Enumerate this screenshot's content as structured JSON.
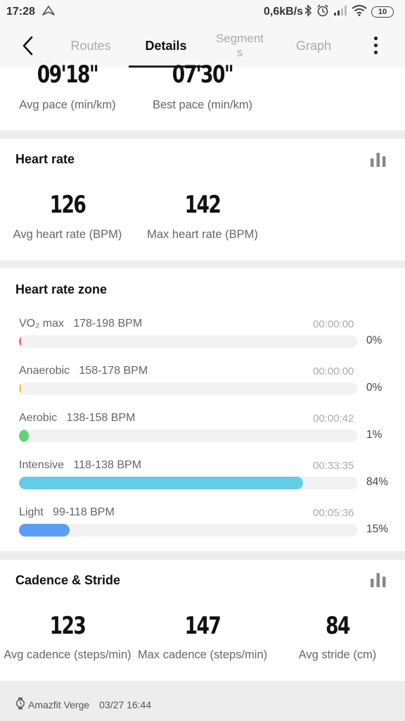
{
  "status_bar": {
    "time": "17:28",
    "network_speed": "0,6kB/s",
    "battery_level": "10",
    "icons": [
      "navigation-icon",
      "bluetooth-icon",
      "alarm-icon",
      "signal-icon",
      "wifi-icon",
      "battery-icon"
    ]
  },
  "appbar": {
    "tabs": [
      {
        "label": "Routes",
        "active": false
      },
      {
        "label": "Details",
        "active": true
      },
      {
        "label": "Segment\ns",
        "active": false
      },
      {
        "label": "Graph",
        "active": false
      }
    ]
  },
  "pace": {
    "avg_value": "09'18\"",
    "avg_label": "Avg pace (min/km)",
    "best_value": "07'30\"",
    "best_label": "Best pace (min/km)"
  },
  "heart_rate": {
    "title": "Heart rate",
    "avg_value": "126",
    "avg_label": "Avg heart rate (BPM)",
    "max_value": "142",
    "max_label": "Max heart rate (BPM)"
  },
  "hr_zone": {
    "title": "Heart rate zone",
    "zones": [
      {
        "name": "VO₂ max",
        "range": "178-198 BPM",
        "time": "00:00:00",
        "percent_label": "0%",
        "fraction": 0.0,
        "color": "#f06a6a"
      },
      {
        "name": "Anaerobic",
        "range": "158-178 BPM",
        "time": "00:00:00",
        "percent_label": "0%",
        "fraction": 0.0,
        "color": "#f5c83a"
      },
      {
        "name": "Aerobic",
        "range": "138-158 BPM",
        "time": "00:00:42",
        "percent_label": "1%",
        "fraction": 0.01,
        "color": "#5ed47a"
      },
      {
        "name": "Intensive",
        "range": "118-138 BPM",
        "time": "00:33:35",
        "percent_label": "84%",
        "fraction": 0.84,
        "color": "#62cde6"
      },
      {
        "name": "Light",
        "range": "99-118 BPM",
        "time": "00:05:36",
        "percent_label": "15%",
        "fraction": 0.15,
        "color": "#5c9ef3"
      }
    ]
  },
  "cadence": {
    "title": "Cadence & Stride",
    "avg_cadence_value": "123",
    "avg_cadence_label": "Avg cadence (steps/min)",
    "max_cadence_value": "147",
    "max_cadence_label": "Max cadence (steps/min)",
    "avg_stride_value": "84",
    "avg_stride_label": "Avg stride (cm)"
  },
  "footer": {
    "device": "Amazfit Verge",
    "datetime": "03/27 16:44"
  }
}
